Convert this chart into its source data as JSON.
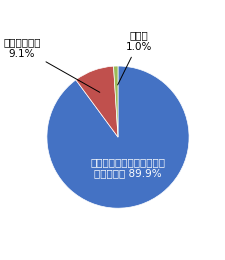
{
  "values": [
    89.9,
    9.1,
    1.0
  ],
  "colors": [
    "#4472C4",
    "#C0504D",
    "#9BBB59"
  ],
  "inner_label_line1": "設置する義務があることを",
  "inner_label_line2": "知っている 89.9%",
  "inner_label_color": "#FFFFFF",
  "inner_label_fontsize": 7.5,
  "outer_label_fontsize": 7.5,
  "label_shiran": "知らなかった",
  "label_shiran_pct": "9.1%",
  "label_mukai": "無回答",
  "label_mukai_pct": "1.0%",
  "bg_color": "#FFFFFF",
  "figsize": [
    2.26,
    2.6
  ],
  "dpi": 100
}
